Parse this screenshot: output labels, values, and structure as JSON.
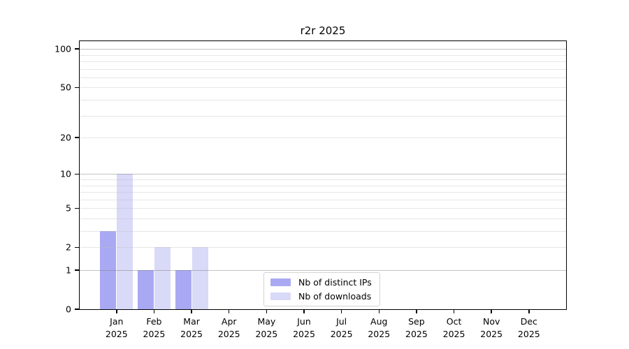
{
  "title": "r2r 2025",
  "chart_data": {
    "type": "bar",
    "title": "r2r 2025",
    "xlabel": "",
    "ylabel": "",
    "yscale": "log1p",
    "grid": "horizontal",
    "legend_position": "bottom-center",
    "months": [
      "Jan",
      "Feb",
      "Mar",
      "Apr",
      "May",
      "Jun",
      "Jul",
      "Aug",
      "Sep",
      "Oct",
      "Nov",
      "Dec"
    ],
    "tick_year": "2025",
    "categories": [
      "Jan 2025",
      "Feb 2025",
      "Mar 2025",
      "Apr 2025",
      "May 2025",
      "Jun 2025",
      "Jul 2025",
      "Aug 2025",
      "Sep 2025",
      "Oct 2025",
      "Nov 2025",
      "Dec 2025"
    ],
    "series": [
      {
        "name": "Nb of distinct IPs",
        "color": "#a9a9f3",
        "values": [
          3,
          1,
          1,
          0,
          0,
          0,
          0,
          0,
          0,
          0,
          0,
          0
        ]
      },
      {
        "name": "Nb of downloads",
        "color": "#d9d9f8",
        "values": [
          10,
          2,
          2,
          0,
          0,
          0,
          0,
          0,
          0,
          0,
          0,
          0
        ]
      }
    ],
    "y_ticks": [
      0,
      1,
      2,
      5,
      10,
      20,
      50,
      100
    ],
    "major_gridlines": [
      1,
      10,
      100
    ],
    "minor_gridlines": [
      2,
      3,
      4,
      5,
      6,
      7,
      8,
      9,
      20,
      30,
      40,
      50,
      60,
      70,
      80,
      90
    ],
    "ylim": [
      0,
      115
    ]
  },
  "colors": {
    "background": "#ffffff",
    "axis": "#000000",
    "grid_minor": "#ececec",
    "grid_major": "#c8c8c8",
    "legend_border": "#d4d4d4"
  }
}
